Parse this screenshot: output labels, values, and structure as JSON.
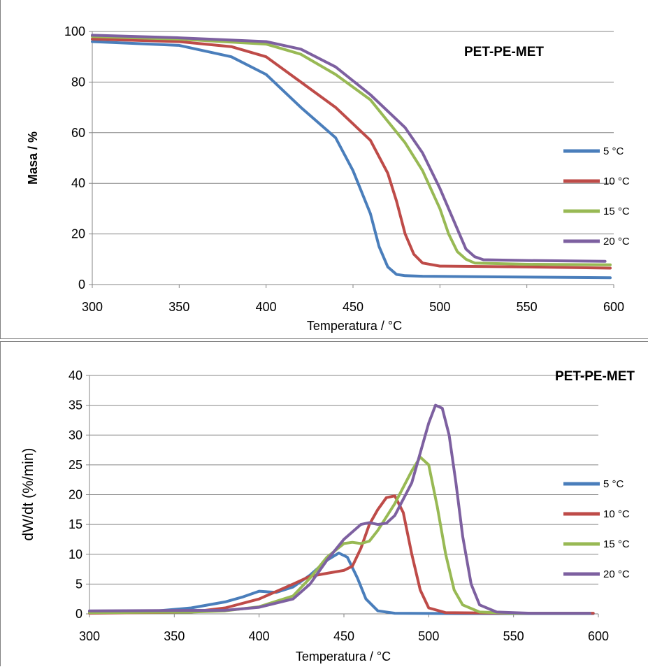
{
  "chart_data": [
    {
      "type": "line",
      "title": "PET-PE-MET",
      "xlabel": "Temperatura / °C",
      "ylabel": "Masa / %",
      "xlim": [
        300,
        600
      ],
      "ylim": [
        0,
        100
      ],
      "x_ticks": [
        "300",
        "350",
        "400",
        "450",
        "500",
        "550",
        "600"
      ],
      "y_ticks": [
        "0",
        "20",
        "40",
        "60",
        "80",
        "100"
      ],
      "grid": true,
      "legend_position": "right",
      "series": [
        {
          "name": "5 °C",
          "color": "#4a7ebb",
          "x": [
            300,
            350,
            380,
            400,
            420,
            440,
            450,
            460,
            465,
            470,
            475,
            480,
            490,
            520,
            560,
            598
          ],
          "y": [
            96,
            94.5,
            90,
            83,
            70,
            58,
            45,
            28,
            15,
            7,
            4,
            3.5,
            3.3,
            3.1,
            2.9,
            2.7
          ]
        },
        {
          "name": "10 °C",
          "color": "#be4b48",
          "x": [
            300,
            350,
            380,
            400,
            420,
            440,
            460,
            470,
            475,
            480,
            485,
            490,
            500,
            550,
            598
          ],
          "y": [
            97,
            96,
            94,
            90,
            80,
            70,
            57,
            44,
            33,
            20,
            12,
            8.5,
            7.3,
            7,
            6.5
          ]
        },
        {
          "name": "15 °C",
          "color": "#98b954",
          "x": [
            300,
            350,
            400,
            420,
            440,
            460,
            480,
            490,
            500,
            505,
            510,
            515,
            520,
            550,
            598
          ],
          "y": [
            98,
            97,
            95,
            91,
            83,
            73,
            56,
            45,
            30,
            20,
            13,
            10,
            8.5,
            8,
            7.8
          ]
        },
        {
          "name": "20 °C",
          "color": "#7d60a0",
          "x": [
            300,
            350,
            400,
            420,
            440,
            460,
            480,
            490,
            500,
            510,
            515,
            520,
            525,
            550,
            595
          ],
          "y": [
            98.5,
            97.5,
            96,
            93,
            86,
            75,
            62,
            52,
            38,
            22,
            14,
            11,
            9.8,
            9.5,
            9.2
          ]
        }
      ]
    },
    {
      "type": "line",
      "title": "PET-PE-MET",
      "xlabel": "Temperatura / °C",
      "ylabel": "dW/dt (%/min)",
      "xlim": [
        300,
        600
      ],
      "ylim": [
        0,
        40
      ],
      "x_ticks": [
        "300",
        "350",
        "400",
        "450",
        "500",
        "550",
        "600"
      ],
      "y_ticks": [
        "0",
        "5",
        "10",
        "15",
        "20",
        "25",
        "30",
        "35",
        "40"
      ],
      "grid": true,
      "legend_position": "right",
      "series": [
        {
          "name": "5 °C",
          "color": "#4a7ebb",
          "x": [
            300,
            340,
            360,
            380,
            390,
            400,
            410,
            420,
            430,
            440,
            447,
            452,
            458,
            463,
            470,
            480,
            520,
            570,
            597
          ],
          "y": [
            0.4,
            0.5,
            1,
            2,
            2.8,
            3.8,
            3.6,
            4.5,
            6.5,
            9,
            10.2,
            9.5,
            6,
            2.5,
            0.5,
            0.1,
            0.05,
            0.05,
            0.05
          ]
        },
        {
          "name": "10 °C",
          "color": "#be4b48",
          "x": [
            300,
            360,
            380,
            400,
            420,
            430,
            440,
            450,
            455,
            460,
            465,
            470,
            475,
            480,
            485,
            490,
            495,
            500,
            510,
            550,
            597
          ],
          "y": [
            0.1,
            0.3,
            1,
            2.5,
            5,
            6.3,
            6.8,
            7.3,
            8,
            11,
            15,
            17.5,
            19.5,
            19.8,
            17,
            10,
            4,
            1,
            0.2,
            0.1,
            0.1
          ]
        },
        {
          "name": "15 °C",
          "color": "#98b954",
          "x": [
            300,
            360,
            380,
            400,
            420,
            430,
            440,
            450,
            455,
            460,
            465,
            470,
            480,
            490,
            495,
            500,
            505,
            510,
            515,
            520,
            530,
            550,
            595
          ],
          "y": [
            0.2,
            0.3,
            0.5,
            1.2,
            3,
            6,
            9.5,
            11.8,
            12,
            11.8,
            12.2,
            14,
            18.5,
            24,
            26.3,
            25,
            18,
            10,
            4,
            1.5,
            0.3,
            0.1,
            0.1
          ]
        },
        {
          "name": "20 °C",
          "color": "#7d60a0",
          "x": [
            300,
            380,
            400,
            420,
            430,
            440,
            450,
            460,
            465,
            470,
            475,
            480,
            490,
            495,
            500,
            504,
            508,
            512,
            516,
            520,
            525,
            530,
            540,
            560,
            595
          ],
          "y": [
            0.5,
            0.6,
            1.1,
            2.5,
            5,
            9,
            12.5,
            15,
            15.3,
            15,
            15.2,
            16.5,
            22,
            27,
            32,
            35,
            34.5,
            30,
            22,
            13,
            5,
            1.5,
            0.3,
            0.1,
            0.1
          ]
        }
      ]
    }
  ]
}
